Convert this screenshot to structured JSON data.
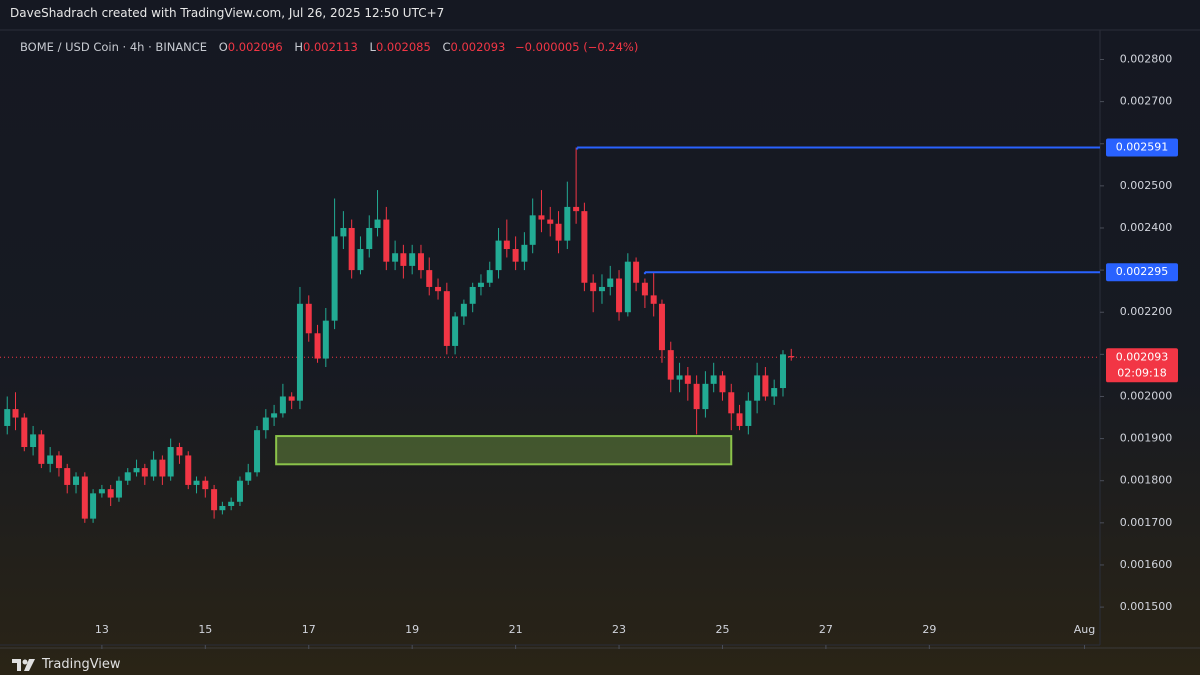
{
  "header": {
    "title": "DaveShadrach created with TradingView.com, Jul 26, 2025 12:50 UTC+7"
  },
  "chart_data": {
    "type": "candlestick",
    "title": "BOME / USD Coin · 4h · BINANCE",
    "legend_labels": {
      "open": "O",
      "high": "H",
      "low": "L",
      "close": "C"
    },
    "change": "−0.000005 (−0.24%)",
    "up_color": "#22ab94",
    "down_color": "#f23645",
    "x": [
      11.17,
      11.33,
      11.5,
      11.67,
      11.83,
      12,
      12.17,
      12.33,
      12.5,
      12.67,
      12.83,
      13,
      13.17,
      13.33,
      13.5,
      13.67,
      13.83,
      14,
      14.17,
      14.33,
      14.5,
      14.67,
      14.83,
      15,
      15.17,
      15.33,
      15.5,
      15.67,
      15.83,
      16,
      16.17,
      16.33,
      16.5,
      16.67,
      16.83,
      17,
      17.17,
      17.33,
      17.5,
      17.67,
      17.83,
      18,
      18.17,
      18.33,
      18.5,
      18.67,
      18.83,
      19,
      19.17,
      19.33,
      19.5,
      19.67,
      19.83,
      20,
      20.17,
      20.33,
      20.5,
      20.67,
      20.83,
      21,
      21.17,
      21.33,
      21.5,
      21.67,
      21.83,
      22,
      22.17,
      22.33,
      22.5,
      22.67,
      22.83,
      23,
      23.17,
      23.33,
      23.5,
      23.67,
      23.83,
      24,
      24.17,
      24.33,
      24.5,
      24.67,
      24.83,
      25,
      25.17,
      25.33,
      25.5,
      25.67,
      25.83,
      26,
      26.17,
      26.33
    ],
    "open": [
      0.00193,
      0.00197,
      0.00195,
      0.00188,
      0.00191,
      0.00184,
      0.00186,
      0.00183,
      0.00179,
      0.00181,
      0.00171,
      0.00177,
      0.00178,
      0.00176,
      0.0018,
      0.00182,
      0.00183,
      0.00181,
      0.00185,
      0.00181,
      0.00188,
      0.00186,
      0.00179,
      0.0018,
      0.00178,
      0.00173,
      0.00174,
      0.00175,
      0.0018,
      0.00182,
      0.00192,
      0.00195,
      0.00196,
      0.002,
      0.00199,
      0.00222,
      0.00215,
      0.00209,
      0.00218,
      0.00238,
      0.0024,
      0.0023,
      0.00235,
      0.0024,
      0.00242,
      0.00232,
      0.00234,
      0.00231,
      0.00234,
      0.0023,
      0.00226,
      0.00225,
      0.00212,
      0.00219,
      0.00222,
      0.00226,
      0.00227,
      0.0023,
      0.00237,
      0.00235,
      0.00232,
      0.00236,
      0.00243,
      0.00242,
      0.00241,
      0.00237,
      0.00245,
      0.00244,
      0.00227,
      0.00225,
      0.00226,
      0.00228,
      0.0022,
      0.00232,
      0.00227,
      0.00224,
      0.00222,
      0.00211,
      0.00204,
      0.00205,
      0.00203,
      0.00197,
      0.00203,
      0.00205,
      0.00201,
      0.00196,
      0.00193,
      0.00199,
      0.00205,
      0.002,
      0.00202,
      0.002096
    ],
    "high": [
      0.002,
      0.00201,
      0.00196,
      0.00193,
      0.00192,
      0.00188,
      0.00187,
      0.00184,
      0.00182,
      0.00182,
      0.00178,
      0.00179,
      0.00179,
      0.00181,
      0.00183,
      0.00185,
      0.00184,
      0.00187,
      0.00186,
      0.0019,
      0.00189,
      0.00187,
      0.00181,
      0.00181,
      0.00179,
      0.00175,
      0.00176,
      0.00181,
      0.00184,
      0.00193,
      0.00197,
      0.00198,
      0.00203,
      0.00201,
      0.00226,
      0.00224,
      0.00217,
      0.00221,
      0.00247,
      0.00244,
      0.00242,
      0.00238,
      0.00243,
      0.00249,
      0.00245,
      0.00237,
      0.00236,
      0.00236,
      0.00236,
      0.00233,
      0.00228,
      0.00227,
      0.0022,
      0.00223,
      0.00227,
      0.00229,
      0.00232,
      0.0024,
      0.00242,
      0.00238,
      0.00239,
      0.00247,
      0.00249,
      0.00245,
      0.00244,
      0.00251,
      0.002591,
      0.00246,
      0.00229,
      0.00229,
      0.00231,
      0.0023,
      0.00234,
      0.00233,
      0.00228,
      0.002295,
      0.00223,
      0.00213,
      0.00208,
      0.00207,
      0.00205,
      0.00206,
      0.00208,
      0.00206,
      0.00203,
      0.00198,
      0.00201,
      0.00208,
      0.00207,
      0.00204,
      0.00211,
      0.002113
    ],
    "low": [
      0.00191,
      0.00192,
      0.00187,
      0.00186,
      0.00183,
      0.00182,
      0.00181,
      0.00177,
      0.00177,
      0.0017,
      0.0017,
      0.00176,
      0.00174,
      0.00175,
      0.00179,
      0.00181,
      0.00179,
      0.0018,
      0.00179,
      0.0018,
      0.00184,
      0.00178,
      0.00177,
      0.00176,
      0.00171,
      0.00172,
      0.00173,
      0.00174,
      0.00179,
      0.00181,
      0.0019,
      0.00193,
      0.00195,
      0.00197,
      0.00197,
      0.00213,
      0.00208,
      0.00207,
      0.00216,
      0.00235,
      0.00228,
      0.00229,
      0.00233,
      0.00238,
      0.0023,
      0.0023,
      0.00228,
      0.00229,
      0.00228,
      0.00224,
      0.00223,
      0.0021,
      0.0021,
      0.00217,
      0.0022,
      0.00224,
      0.00226,
      0.00228,
      0.00233,
      0.0023,
      0.0023,
      0.00234,
      0.00239,
      0.00238,
      0.00234,
      0.00235,
      0.00241,
      0.00225,
      0.0022,
      0.00222,
      0.00224,
      0.00218,
      0.00219,
      0.00225,
      0.00221,
      0.00219,
      0.00208,
      0.00201,
      0.00201,
      0.00199,
      0.00191,
      0.00195,
      0.00201,
      0.00199,
      0.00192,
      0.00192,
      0.00191,
      0.00196,
      0.00199,
      0.00198,
      0.002,
      0.002085
    ],
    "close": [
      0.00197,
      0.00195,
      0.00188,
      0.00191,
      0.00184,
      0.00186,
      0.00183,
      0.00179,
      0.00181,
      0.00171,
      0.00177,
      0.00178,
      0.00176,
      0.0018,
      0.00182,
      0.00183,
      0.00181,
      0.00185,
      0.00181,
      0.00188,
      0.00186,
      0.00179,
      0.0018,
      0.00178,
      0.00173,
      0.00174,
      0.00175,
      0.0018,
      0.00182,
      0.00192,
      0.00195,
      0.00196,
      0.002,
      0.00199,
      0.00222,
      0.00215,
      0.00209,
      0.00218,
      0.00238,
      0.0024,
      0.0023,
      0.00235,
      0.0024,
      0.00242,
      0.00232,
      0.00234,
      0.00231,
      0.00234,
      0.0023,
      0.00226,
      0.00225,
      0.00212,
      0.00219,
      0.00222,
      0.00226,
      0.00227,
      0.0023,
      0.00237,
      0.00235,
      0.00232,
      0.00236,
      0.00243,
      0.00242,
      0.00241,
      0.00237,
      0.00245,
      0.00244,
      0.00227,
      0.00225,
      0.00226,
      0.00228,
      0.0022,
      0.00232,
      0.00227,
      0.00224,
      0.00222,
      0.00211,
      0.00204,
      0.00205,
      0.00203,
      0.00197,
      0.00203,
      0.00205,
      0.00201,
      0.00196,
      0.00193,
      0.00199,
      0.00205,
      0.002,
      0.00202,
      0.0021,
      0.002093
    ],
    "xlim": [
      11.03,
      32.3
    ],
    "xticks": [
      13,
      15,
      17,
      19,
      21,
      23,
      25,
      27,
      29,
      {
        "value": 32,
        "label": "Aug"
      }
    ],
    "ylim": [
      0.00141,
      0.00287
    ],
    "yticks": [
      {
        "value": 0.0015,
        "label": "0.001500"
      },
      {
        "value": 0.0016,
        "label": "0.001600"
      },
      {
        "value": 0.0017,
        "label": "0.001700"
      },
      {
        "value": 0.0018,
        "label": "0.001800"
      },
      {
        "value": 0.0019,
        "label": "0.001900"
      },
      {
        "value": 0.002,
        "label": "0.002000"
      },
      {
        "value": 0.0021,
        "label": "0.002100"
      },
      {
        "value": 0.0022,
        "label": "0.002200"
      },
      {
        "value": 0.0023,
        "label": "0.002300"
      },
      {
        "value": 0.0024,
        "label": "0.002400"
      },
      {
        "value": 0.0025,
        "label": "0.002500"
      },
      {
        "value": 0.0026,
        "label": "0.002600"
      },
      {
        "value": 0.0027,
        "label": "0.002700"
      },
      {
        "value": 0.0028,
        "label": "0.002800"
      }
    ],
    "grid": false,
    "levels": [
      {
        "value": 0.002591,
        "x": 22.19,
        "color": "#2962ff"
      },
      {
        "value": 0.002295,
        "x": 23.5,
        "color": "#2962ff"
      }
    ],
    "current_price": {
      "value": 0.002093,
      "countdown": "02:09:18",
      "color": "#f23645"
    },
    "zone": {
      "x": [
        16.37,
        25.17
      ],
      "y": [
        0.001839,
        0.001906
      ],
      "color": "#8bc34a"
    }
  },
  "footer": {
    "brand": "TradingView"
  }
}
